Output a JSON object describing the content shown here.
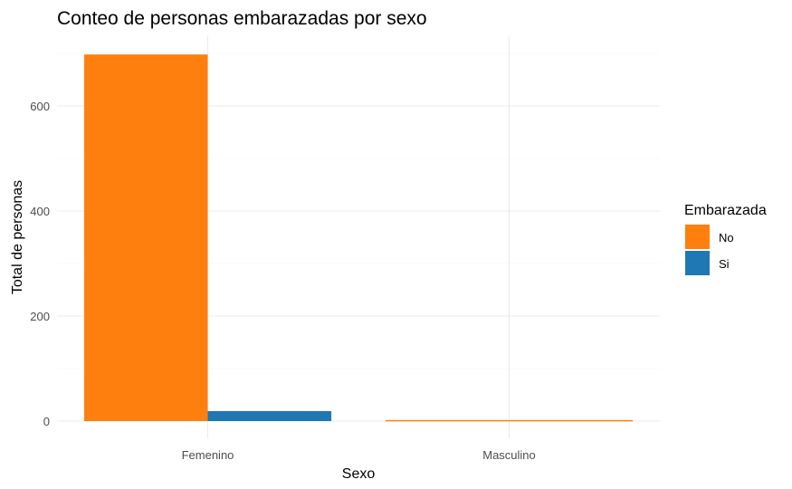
{
  "chart_data": {
    "type": "bar",
    "title": "Conteo de personas embarazadas por sexo",
    "xlabel": "Sexo",
    "ylabel": "Total de personas",
    "categories": [
      "Femenino",
      "Masculino"
    ],
    "series": [
      {
        "name": "No",
        "values": [
          698,
          2
        ],
        "color": "#FF7F0E"
      },
      {
        "name": "Si",
        "values": [
          19,
          0
        ],
        "color": "#1F77B4"
      }
    ],
    "ylim": [
      0,
      700
    ],
    "yticks": [
      0,
      200,
      400,
      600
    ],
    "ytick_labels": [
      "0",
      "200",
      "400",
      "600"
    ],
    "grid": true,
    "legend": {
      "title": "Embarazada",
      "placement": "right"
    }
  }
}
